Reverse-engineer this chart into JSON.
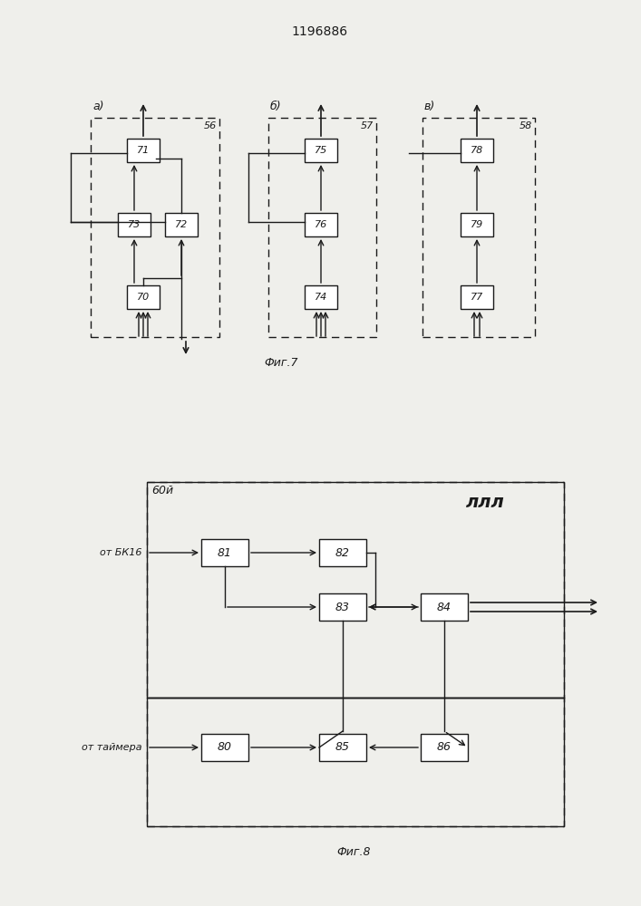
{
  "title": "1196886",
  "fig7_caption": "Фиг.7",
  "fig8_caption": "Фиг.8",
  "bg_color": "#efefeb",
  "box_color": "#ffffff",
  "line_color": "#1a1a1a",
  "fig7a_label": "а)",
  "fig7b_label": "б)",
  "fig7v_label": "в)",
  "block56_label": "56",
  "block57_label": "57",
  "block58_label": "58",
  "b71": "71",
  "b72": "72",
  "b73": "73",
  "b70": "70",
  "b75": "75",
  "b76": "76",
  "b74": "74",
  "b78": "78",
  "b79": "79",
  "b77": "77",
  "block60_label": "60й",
  "b80": "80",
  "b81": "81",
  "b82": "82",
  "b83": "83",
  "b84": "84",
  "b85": "85",
  "b86": "86",
  "label_bk16": "от БК16",
  "label_timer": "от таймера",
  "label_pll": "ллл"
}
